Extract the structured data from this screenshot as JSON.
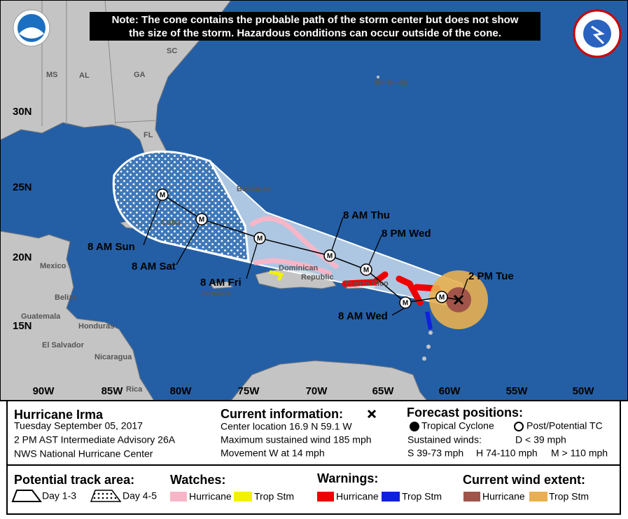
{
  "note": {
    "line1": "Note: The cone contains the probable path of the storm center but does not show",
    "line2": "the size of the storm. Hazardous conditions can occur outside of the cone."
  },
  "map": {
    "lat_labels": [
      "30N",
      "25N",
      "20N",
      "15N"
    ],
    "lon_labels": [
      "90W",
      "85W",
      "80W",
      "75W",
      "70W",
      "65W",
      "60W",
      "55W",
      "50W"
    ],
    "places": [
      "SC",
      "MS",
      "AL",
      "GA",
      "FL",
      "Bermuda",
      "Bahamas",
      "Cuba",
      "Mexico",
      "Belize",
      "Guatemala",
      "Honduras",
      "El Salvador",
      "Nicaragua",
      "Rica",
      "Jamaica",
      "Dominican",
      "Republic",
      "Puerto Rico"
    ],
    "forecast_labels": [
      "2 PM Tue",
      "8 AM Wed",
      "8 PM Wed",
      "8 AM Thu",
      "8 AM Fri",
      "8 AM Sat",
      "8 AM Sun"
    ],
    "marker_letter": "M"
  },
  "storm": {
    "name": "Hurricane Irma",
    "date": "Tuesday September 05, 2017",
    "advisory": "2 PM AST Intermediate Advisory 26A",
    "source": "NWS National Hurricane Center"
  },
  "current": {
    "title": "Current information:",
    "lines": [
      "Center location 16.9 N 59.1 W",
      "Maximum sustained wind 185 mph",
      "Movement W at 14 mph"
    ]
  },
  "forecast": {
    "title": "Forecast positions:",
    "tropical": "Tropical Cyclone",
    "post": "Post/Potential TC",
    "sustained": "Sustained winds:",
    "d": "D < 39 mph",
    "s": "S 39-73 mph",
    "h": "H 74-110 mph",
    "m": "M > 110 mph"
  },
  "legend": {
    "track_title": "Potential track area:",
    "day13": "Day 1-3",
    "day45": "Day 4-5",
    "watches_title": "Watches:",
    "warnings_title": "Warnings:",
    "wind_title": "Current wind extent:",
    "hurricane": "Hurricane",
    "trop_stm": "Trop Stm"
  }
}
